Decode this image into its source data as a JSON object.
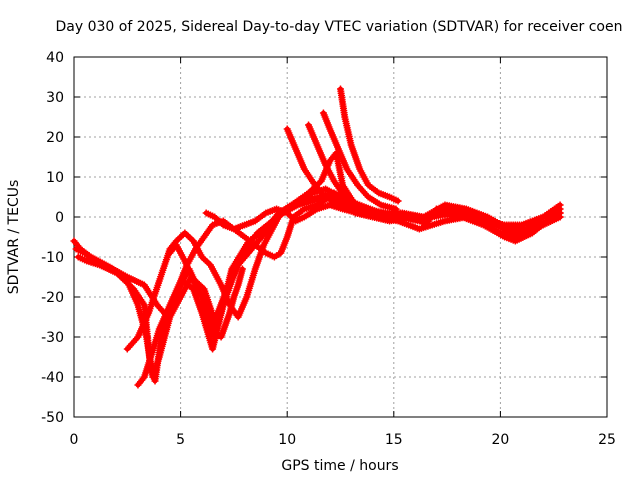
{
  "chart_data": {
    "type": "scatter",
    "title": "Day 030 of 2025, Sidereal Day-to-day VTEC variation (SDTVAR) for receiver coen",
    "xlabel": "GPS time / hours",
    "ylabel": "SDTVAR / TECUs",
    "xlim": [
      0,
      25
    ],
    "ylim": [
      -50,
      40
    ],
    "xticks": [
      0,
      5,
      10,
      15,
      20,
      25
    ],
    "yticks": [
      40,
      30,
      20,
      10,
      0,
      -10,
      -20,
      -30,
      -40,
      -50
    ],
    "grid": true,
    "marker": "+",
    "color": "#ff0000",
    "series": [
      {
        "name": "track-1",
        "points": [
          [
            0,
            -6
          ],
          [
            0.3,
            -8
          ],
          [
            0.8,
            -10
          ],
          [
            1.5,
            -12
          ],
          [
            2.5,
            -15
          ],
          [
            3.3,
            -17
          ],
          [
            3.9,
            -22
          ],
          [
            4.4,
            -25
          ],
          [
            4.9,
            -18
          ],
          [
            5.4,
            -13
          ],
          [
            6.0,
            -20
          ],
          [
            6.4,
            -30
          ],
          [
            6.9,
            -24
          ],
          [
            7.4,
            -13
          ],
          [
            8.2,
            -6
          ],
          [
            9.0,
            -3
          ],
          [
            9.6,
            1
          ],
          [
            10.2,
            3
          ],
          [
            11.0,
            6
          ],
          [
            11.6,
            9
          ],
          [
            12.0,
            14
          ],
          [
            12.3,
            16
          ],
          [
            12.6,
            8
          ],
          [
            13.2,
            3
          ],
          [
            14.0,
            1
          ],
          [
            15.0,
            0
          ],
          [
            16.0,
            0
          ],
          [
            16.5,
            -2
          ],
          [
            17.0,
            2
          ],
          [
            18.0,
            1
          ],
          [
            19.0,
            -1
          ],
          [
            20.0,
            -4
          ],
          [
            20.5,
            -5
          ],
          [
            21.2,
            -4
          ],
          [
            22.0,
            -2
          ],
          [
            22.8,
            0
          ]
        ]
      },
      {
        "name": "track-2",
        "points": [
          [
            0.2,
            -10
          ],
          [
            0.6,
            -11
          ],
          [
            1.2,
            -12
          ],
          [
            2.0,
            -14
          ],
          [
            2.8,
            -18
          ],
          [
            3.3,
            -22
          ],
          [
            3.6,
            -38
          ],
          [
            3.8,
            -41
          ],
          [
            4.1,
            -30
          ],
          [
            4.6,
            -22
          ],
          [
            5.1,
            -16
          ],
          [
            5.6,
            -18
          ],
          [
            6.0,
            -24
          ],
          [
            6.5,
            -33
          ],
          [
            7.0,
            -22
          ],
          [
            7.8,
            -10
          ],
          [
            8.6,
            -4
          ],
          [
            9.3,
            -1
          ],
          [
            9.8,
            1
          ],
          [
            10.5,
            3
          ],
          [
            11.2,
            4
          ],
          [
            11.8,
            5
          ],
          [
            12.4,
            4
          ],
          [
            13.2,
            2
          ],
          [
            14.2,
            1
          ],
          [
            15.2,
            0
          ],
          [
            16.2,
            -1
          ],
          [
            17.0,
            1
          ],
          [
            18.2,
            0
          ],
          [
            19.2,
            -2
          ],
          [
            20.2,
            -5
          ],
          [
            20.7,
            -6
          ],
          [
            21.5,
            -4
          ],
          [
            22.2,
            -1
          ],
          [
            22.8,
            1
          ]
        ]
      },
      {
        "name": "track-3",
        "points": [
          [
            0.1,
            -8
          ],
          [
            0.5,
            -9
          ],
          [
            1.0,
            -11
          ],
          [
            1.8,
            -13
          ],
          [
            2.5,
            -16
          ],
          [
            3.0,
            -22
          ],
          [
            3.4,
            -30
          ],
          [
            3.7,
            -40
          ],
          [
            4.0,
            -35
          ],
          [
            4.5,
            -25
          ],
          [
            5.0,
            -20
          ],
          [
            5.5,
            -15
          ],
          [
            6.1,
            -18
          ],
          [
            6.6,
            -26
          ],
          [
            7.1,
            -19
          ],
          [
            7.7,
            -12
          ],
          [
            8.5,
            -7
          ],
          [
            9.1,
            -3
          ],
          [
            9.5,
            0
          ],
          [
            10.0,
            2
          ],
          [
            10.8,
            4
          ],
          [
            11.5,
            5
          ],
          [
            12.2,
            6
          ],
          [
            12.8,
            4
          ],
          [
            13.6,
            2
          ],
          [
            14.6,
            1
          ],
          [
            15.5,
            0
          ],
          [
            16.5,
            0
          ],
          [
            17.5,
            2
          ],
          [
            18.5,
            1
          ],
          [
            19.5,
            -1
          ],
          [
            20.3,
            -3
          ],
          [
            21.0,
            -4
          ],
          [
            22.0,
            -2
          ],
          [
            22.8,
            2
          ]
        ]
      },
      {
        "name": "track-4",
        "points": [
          [
            2.5,
            -33
          ],
          [
            3.0,
            -30
          ],
          [
            3.5,
            -24
          ],
          [
            4.0,
            -16
          ],
          [
            4.5,
            -8
          ],
          [
            4.8,
            -6
          ],
          [
            5.2,
            -4
          ],
          [
            5.6,
            -6
          ],
          [
            6.0,
            -10
          ],
          [
            6.4,
            -12
          ],
          [
            6.9,
            -17
          ],
          [
            7.3,
            -22
          ],
          [
            7.7,
            -25
          ],
          [
            8.1,
            -20
          ],
          [
            8.5,
            -13
          ],
          [
            8.9,
            -7
          ],
          [
            9.2,
            -4
          ],
          [
            9.6,
            0
          ],
          [
            10.0,
            2
          ],
          [
            10.6,
            4
          ],
          [
            11.2,
            6
          ],
          [
            11.8,
            7
          ],
          [
            12.5,
            5
          ],
          [
            13.4,
            3
          ],
          [
            14.4,
            1
          ],
          [
            15.4,
            1
          ],
          [
            16.4,
            0
          ],
          [
            17.4,
            3
          ],
          [
            18.4,
            2
          ],
          [
            19.4,
            0
          ],
          [
            20.4,
            -3
          ],
          [
            21.2,
            -3
          ],
          [
            22.0,
            0
          ],
          [
            22.8,
            3
          ]
        ]
      },
      {
        "name": "track-5",
        "points": [
          [
            3.0,
            -42
          ],
          [
            3.3,
            -40
          ],
          [
            3.6,
            -35
          ],
          [
            4.0,
            -28
          ],
          [
            4.5,
            -22
          ],
          [
            5.0,
            -16
          ],
          [
            5.3,
            -12
          ],
          [
            5.7,
            -8
          ],
          [
            6.1,
            -5
          ],
          [
            6.5,
            -2
          ],
          [
            7.0,
            -1
          ],
          [
            7.5,
            -3
          ],
          [
            8.0,
            -5
          ],
          [
            8.5,
            -7
          ],
          [
            9.0,
            -9
          ],
          [
            9.4,
            -10
          ],
          [
            9.7,
            -9
          ],
          [
            10.0,
            -5
          ],
          [
            10.3,
            0
          ],
          [
            10.8,
            2
          ],
          [
            11.4,
            3
          ],
          [
            12.0,
            5
          ],
          [
            12.6,
            3
          ],
          [
            13.2,
            1
          ],
          [
            14.0,
            0
          ],
          [
            14.8,
            -1
          ],
          [
            15.8,
            0
          ],
          [
            16.8,
            0
          ],
          [
            17.8,
            1
          ],
          [
            18.8,
            0
          ],
          [
            19.8,
            -2
          ],
          [
            20.6,
            -4
          ],
          [
            21.4,
            -3
          ],
          [
            22.2,
            -1
          ],
          [
            22.8,
            1
          ]
        ]
      },
      {
        "name": "track-6",
        "points": [
          [
            6.2,
            1
          ],
          [
            6.6,
            0
          ],
          [
            7.0,
            -2
          ],
          [
            7.5,
            -3
          ],
          [
            8.0,
            -2
          ],
          [
            8.5,
            -1
          ],
          [
            9.0,
            1
          ],
          [
            9.5,
            2
          ],
          [
            10.0,
            1
          ],
          [
            10.4,
            -1
          ],
          [
            10.8,
            0
          ],
          [
            11.4,
            2
          ],
          [
            12.0,
            3
          ],
          [
            12.6,
            2
          ],
          [
            13.3,
            1
          ],
          [
            14.2,
            0
          ],
          [
            15.2,
            -1
          ],
          [
            16.2,
            -3
          ],
          [
            16.8,
            -2
          ],
          [
            17.4,
            -1
          ],
          [
            18.4,
            0
          ],
          [
            19.4,
            -1
          ],
          [
            20.2,
            -2
          ],
          [
            21.0,
            -2
          ],
          [
            22.0,
            0
          ],
          [
            22.8,
            0
          ]
        ]
      },
      {
        "name": "track-7",
        "points": [
          [
            7.9,
            -13
          ],
          [
            7.7,
            -17
          ],
          [
            7.5,
            -20
          ],
          [
            7.3,
            -24
          ],
          [
            7.1,
            -27
          ],
          [
            6.9,
            -30
          ],
          [
            6.6,
            -29
          ],
          [
            6.3,
            -24
          ],
          [
            6.0,
            -20
          ],
          [
            5.6,
            -16
          ],
          [
            5.2,
            -11
          ],
          [
            4.8,
            -7
          ],
          [
            4.5,
            -9
          ]
        ]
      },
      {
        "name": "track-8",
        "points": [
          [
            10.0,
            22
          ],
          [
            10.4,
            17
          ],
          [
            10.8,
            12
          ],
          [
            11.3,
            8
          ],
          [
            11.8,
            5
          ],
          [
            12.4,
            3
          ],
          [
            13.0,
            2
          ],
          [
            13.8,
            1
          ],
          [
            14.6,
            1
          ]
        ]
      },
      {
        "name": "track-9",
        "points": [
          [
            11.0,
            23
          ],
          [
            11.4,
            18
          ],
          [
            11.8,
            13
          ],
          [
            12.2,
            9
          ],
          [
            12.7,
            5
          ],
          [
            13.3,
            3
          ],
          [
            14.0,
            1
          ],
          [
            14.8,
            0
          ]
        ]
      },
      {
        "name": "track-10",
        "points": [
          [
            11.7,
            26
          ],
          [
            12.0,
            22
          ],
          [
            12.4,
            17
          ],
          [
            12.8,
            12
          ],
          [
            13.3,
            8
          ],
          [
            13.8,
            5
          ],
          [
            14.4,
            3
          ],
          [
            15.1,
            2
          ]
        ]
      },
      {
        "name": "track-11",
        "points": [
          [
            12.5,
            32
          ],
          [
            12.7,
            25
          ],
          [
            13.0,
            18
          ],
          [
            13.4,
            12
          ],
          [
            13.8,
            8
          ],
          [
            14.3,
            6
          ],
          [
            14.8,
            5
          ],
          [
            15.2,
            4
          ]
        ]
      }
    ]
  }
}
